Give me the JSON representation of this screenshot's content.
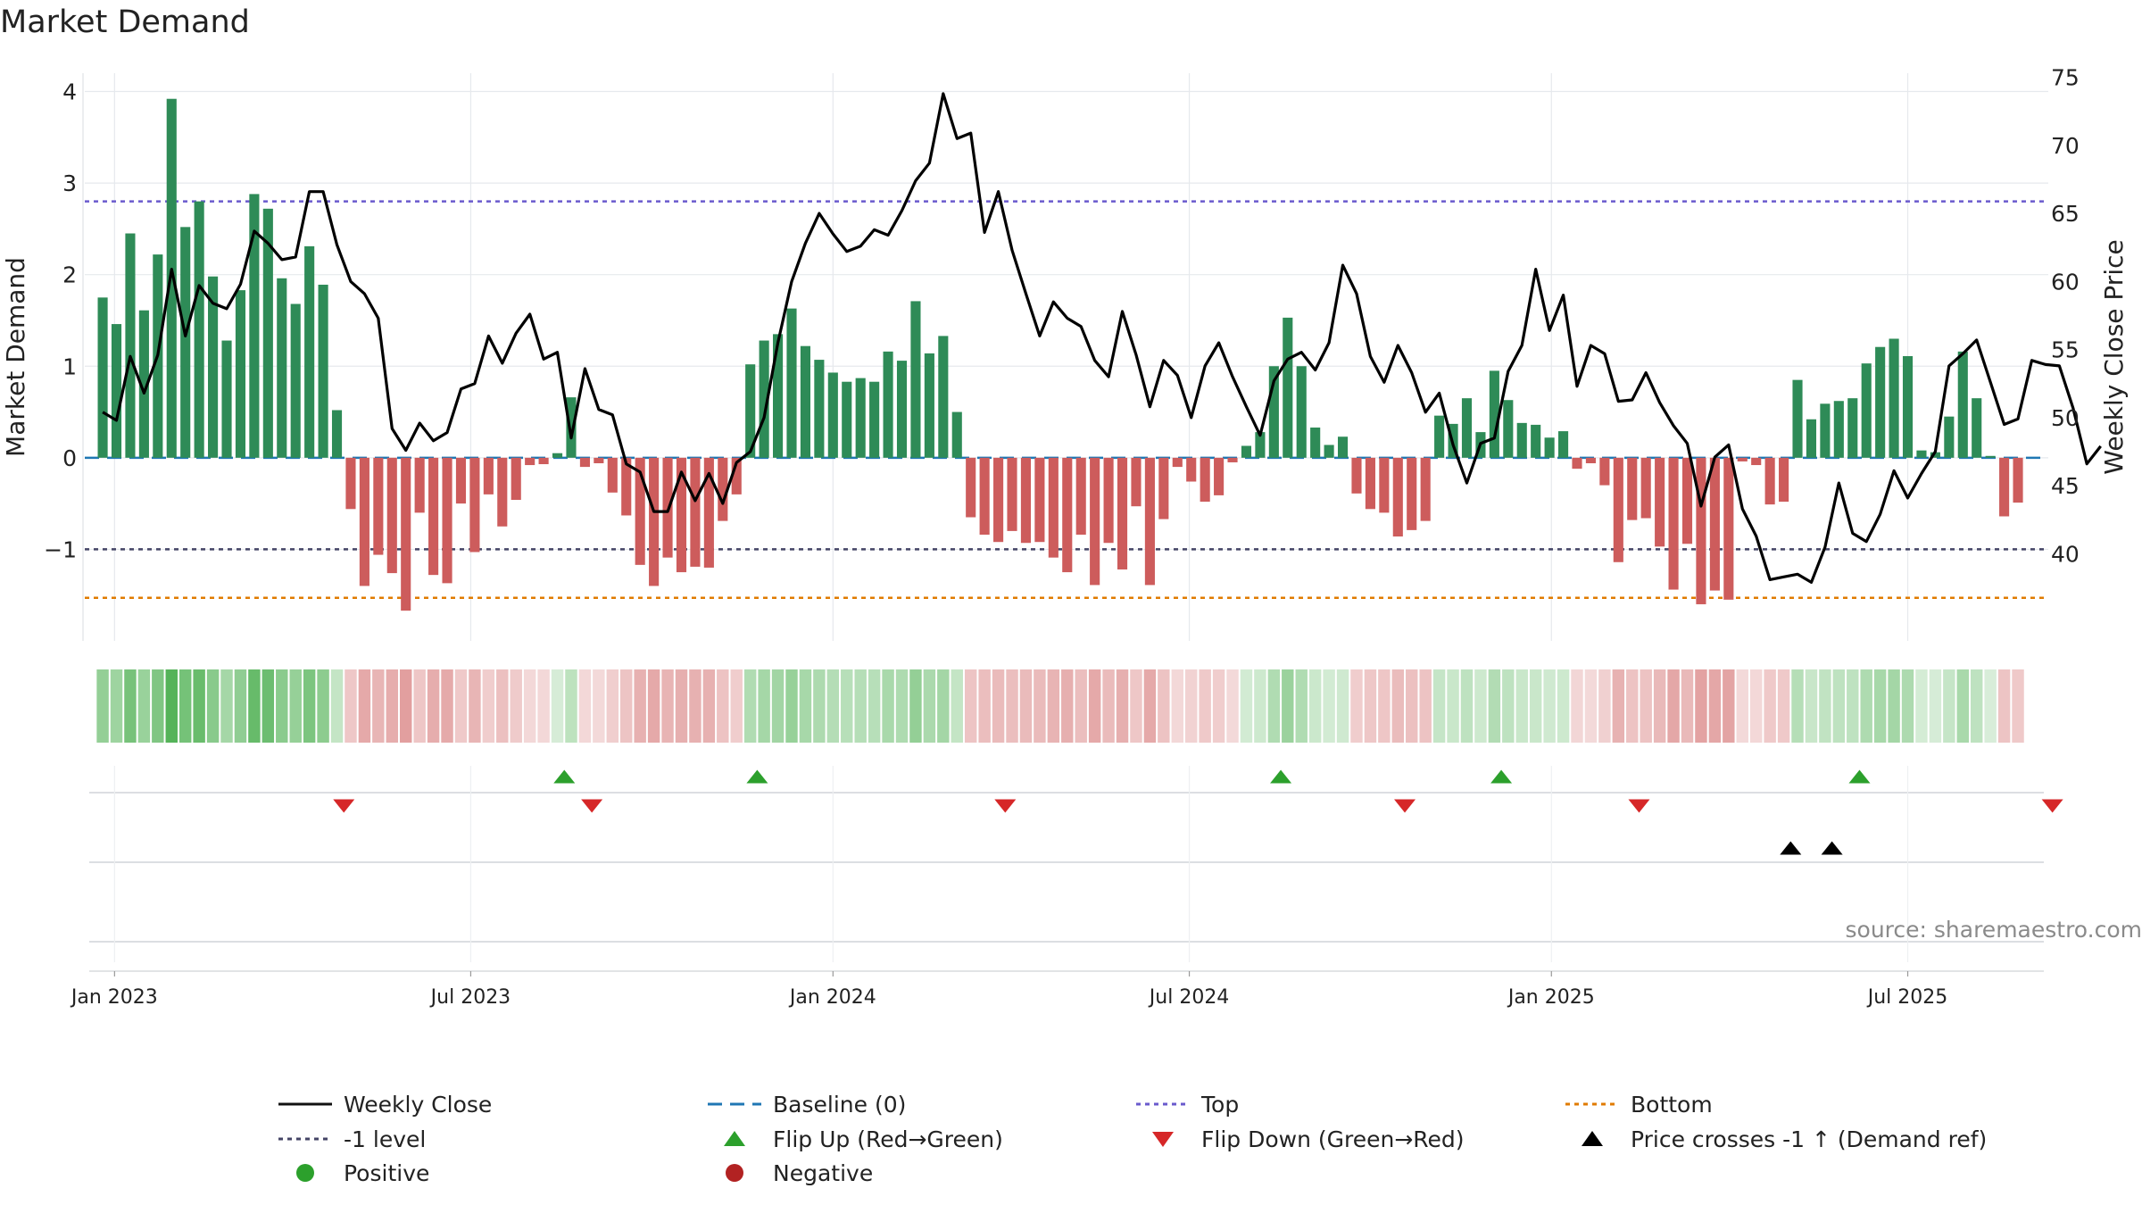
{
  "chart_data": {
    "type": "bar",
    "title": "Market Demand",
    "ylabel": "Market Demand",
    "y2label": "Weekly Close Price",
    "ylim": [
      -2.0,
      4.2
    ],
    "y2lim": [
      33.6,
      75.3
    ],
    "yticks": [
      "−1",
      "0",
      "1",
      "2",
      "3",
      "4"
    ],
    "ytick_values": [
      -1,
      0,
      1,
      2,
      3,
      4
    ],
    "y2ticks": [
      "40",
      "45",
      "50",
      "55",
      "60",
      "65",
      "70",
      "75"
    ],
    "y2tick_values": [
      40,
      45,
      50,
      55,
      60,
      65,
      70,
      75
    ],
    "x_start": "2022-12-26",
    "x_end": "2025-09-22",
    "x_range_weeks": [
      -1.3,
      141.2
    ],
    "xticks": [
      {
        "label": "Jan 2023",
        "week": 0.86
      },
      {
        "label": "Jul 2023",
        "week": 26.71
      },
      {
        "label": "Jan 2024",
        "week": 53.0
      },
      {
        "label": "Jul 2024",
        "week": 78.86
      },
      {
        "label": "Jan 2025",
        "week": 105.14
      },
      {
        "label": "Jul 2025",
        "week": 131.0
      }
    ],
    "levels": {
      "top": 2.8,
      "minus1": -1.0,
      "bottom": -1.53,
      "baseline": 0
    },
    "demand": [
      1.75,
      1.46,
      2.45,
      1.61,
      2.22,
      3.92,
      2.52,
      2.8,
      1.98,
      1.28,
      1.83,
      2.88,
      2.72,
      1.96,
      1.68,
      2.31,
      1.89,
      0.52,
      -0.56,
      -1.4,
      -1.06,
      -1.26,
      -1.67,
      -0.6,
      -1.28,
      -1.37,
      -0.5,
      -1.03,
      -0.4,
      -0.75,
      -0.46,
      -0.08,
      -0.07,
      0.05,
      0.66,
      -0.1,
      -0.06,
      -0.38,
      -0.63,
      -1.17,
      -1.4,
      -1.09,
      -1.25,
      -1.19,
      -1.2,
      -0.69,
      -0.4,
      1.02,
      1.28,
      1.35,
      1.63,
      1.22,
      1.07,
      0.93,
      0.83,
      0.87,
      0.83,
      1.16,
      1.06,
      1.71,
      1.14,
      1.33,
      0.5,
      -0.65,
      -0.84,
      -0.92,
      -0.8,
      -0.93,
      -0.92,
      -1.09,
      -1.25,
      -0.84,
      -1.39,
      -0.93,
      -1.22,
      -0.53,
      -1.39,
      -0.67,
      -0.1,
      -0.26,
      -0.48,
      -0.41,
      -0.05,
      0.13,
      0.28,
      1.0,
      1.53,
      1.0,
      0.33,
      0.14,
      0.23,
      -0.39,
      -0.56,
      -0.6,
      -0.86,
      -0.79,
      -0.69,
      0.46,
      0.37,
      0.65,
      0.28,
      0.95,
      0.63,
      0.38,
      0.36,
      0.22,
      0.29,
      -0.12,
      -0.06,
      -0.3,
      -1.14,
      -0.68,
      -0.66,
      -0.97,
      -1.44,
      -0.94,
      -1.6,
      -1.45,
      -1.55,
      -0.04,
      -0.08,
      -0.51,
      -0.48,
      0.85,
      0.42,
      0.59,
      0.62,
      0.65,
      1.03,
      1.21,
      1.3,
      1.11,
      0.08,
      0.06,
      0.45,
      1.16,
      0.65,
      0.02,
      -0.64,
      -0.49
    ],
    "close": [
      50.4,
      49.8,
      54.5,
      51.8,
      54.6,
      60.9,
      56.0,
      59.7,
      58.4,
      58.0,
      59.8,
      63.7,
      62.8,
      61.6,
      61.8,
      66.6,
      66.6,
      62.7,
      60.0,
      59.1,
      57.3,
      49.2,
      47.6,
      49.6,
      48.3,
      48.9,
      52.1,
      52.5,
      56.0,
      54.0,
      56.2,
      57.6,
      54.3,
      54.8,
      48.5,
      53.6,
      50.6,
      50.2,
      46.6,
      46.0,
      43.1,
      43.1,
      46.0,
      43.9,
      45.9,
      43.7,
      46.7,
      47.5,
      50.0,
      55.5,
      60.0,
      62.8,
      65.0,
      63.5,
      62.2,
      62.6,
      63.8,
      63.4,
      65.2,
      67.4,
      68.7,
      73.8,
      70.5,
      70.9,
      63.6,
      66.6,
      62.3,
      59.1,
      56.0,
      58.5,
      57.3,
      56.7,
      54.2,
      53.0,
      57.8,
      54.6,
      50.8,
      54.2,
      53.1,
      50.0,
      53.8,
      55.5,
      53.0,
      50.8,
      48.7,
      52.7,
      54.3,
      54.8,
      53.5,
      55.5,
      61.2,
      59.1,
      54.5,
      52.6,
      55.3,
      53.3,
      50.4,
      51.8,
      48.0,
      45.2,
      48.1,
      48.5,
      53.4,
      55.3,
      60.9,
      56.4,
      59.0,
      52.3,
      55.3,
      54.7,
      51.2,
      51.3,
      53.3,
      51.1,
      49.4,
      48.1,
      43.5,
      47.1,
      48.0,
      43.3,
      41.3,
      38.1,
      38.3,
      38.5,
      37.9,
      40.5,
      45.2,
      41.5,
      40.9,
      42.9,
      46.1,
      44.1,
      45.9,
      47.5,
      53.8,
      54.7,
      55.7,
      52.6,
      49.5,
      49.9,
      54.2,
      53.9,
      53.8,
      50.7,
      46.6,
      47.9
    ],
    "events": {
      "flip_up_weeks": [
        33.5,
        47.5,
        85.5,
        101.5,
        127.5
      ],
      "flip_down_weeks": [
        17.5,
        35.5,
        65.5,
        94.5,
        111.5,
        141.5
      ],
      "price_cross_weeks": [
        122.5,
        125.5
      ]
    },
    "source": "source: sharemaestro.com",
    "legend_position": "bottom",
    "legend": [
      {
        "label": "Weekly Close",
        "kind": "line",
        "color": "#111111"
      },
      {
        "label": "Baseline (0)",
        "kind": "dashed",
        "color": "#1f77b4"
      },
      {
        "label": "Top",
        "kind": "dotted",
        "color": "#6a5acd"
      },
      {
        "label": "Bottom",
        "kind": "dotted",
        "color": "#e07b00"
      },
      {
        "label": "-1 level",
        "kind": "dotted",
        "color": "#444466"
      },
      {
        "label": "Flip Up (Red→Green)",
        "kind": "up",
        "color": "#2ca02c"
      },
      {
        "label": "Flip Down (Green→Red)",
        "kind": "down",
        "color": "#d62728"
      },
      {
        "label": "Price crosses -1 ↑ (Demand ref)",
        "kind": "up",
        "color": "#000000"
      },
      {
        "label": "Positive",
        "kind": "dot",
        "color": "#2ca02c"
      },
      {
        "label": "Negative",
        "kind": "dot",
        "color": "#b22222"
      }
    ],
    "colors": {
      "positive_bar": "#2e8b57",
      "negative_bar": "#cd5c5c",
      "close_line": "#000000",
      "strip_green": "#4caf50",
      "strip_red": "#cd5c5c",
      "grid": "#e6e9ed"
    }
  }
}
